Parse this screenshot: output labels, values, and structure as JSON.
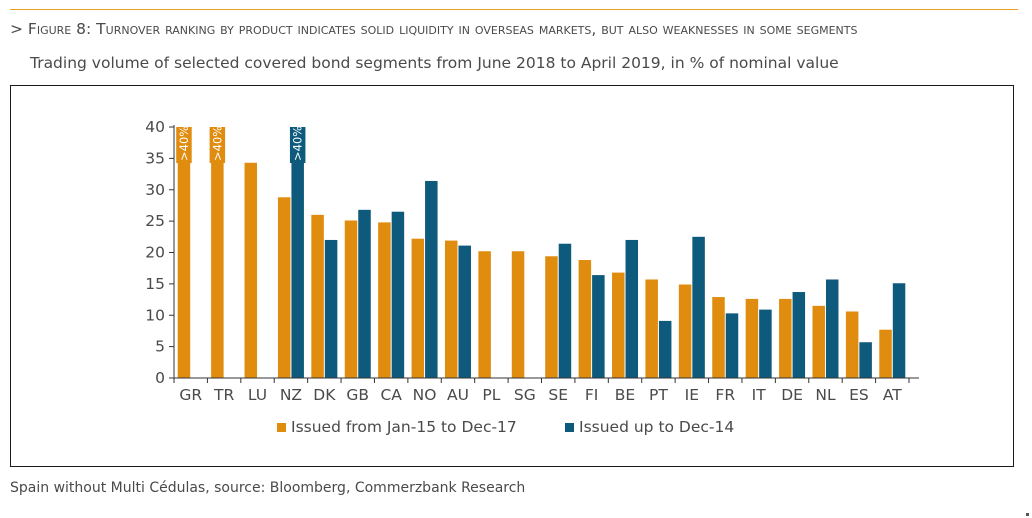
{
  "figure": {
    "title": "> Figure 8: Turnover ranking by product indicates solid liquidity in overseas markets, but also weaknesses in some segments",
    "subtitle": "Trading volume of selected covered bond segments from June 2018 to April 2019, in % of nominal value",
    "note": "Spain without Multi Cédulas, source: Bloomberg, Commerzbank Research"
  },
  "colors": {
    "orange": "#e08c0f",
    "blue": "#0e5a7c",
    "rule": "#e8a020"
  },
  "chart_data": {
    "type": "bar",
    "categories": [
      "GR",
      "TR",
      "LU",
      "NZ",
      "DK",
      "GB",
      "CA",
      "NO",
      "AU",
      "PL",
      "SG",
      "SE",
      "FI",
      "BE",
      "PT",
      "IE",
      "FR",
      "IT",
      "DE",
      "NL",
      "ES",
      "AT"
    ],
    "series": [
      {
        "name": "Issued from Jan-15 to Dec-17",
        "color": "#e08c0f",
        "values": [
          40,
          40,
          34.3,
          28.8,
          26,
          25.1,
          24.8,
          22.2,
          21.9,
          20.2,
          20.2,
          19.4,
          18.8,
          16.8,
          15.7,
          14.9,
          12.9,
          12.6,
          12.6,
          11.5,
          10.6,
          7.7
        ],
        "labels": [
          ">40%",
          ">40%",
          "",
          "",
          "",
          "",
          "",
          "",
          "",
          "",
          "",
          "",
          "",
          "",
          "",
          "",
          "",
          "",
          "",
          "",
          "",
          ""
        ]
      },
      {
        "name": "Issued up to Dec-14",
        "color": "#0e5a7c",
        "values": [
          null,
          null,
          null,
          40,
          22,
          26.8,
          26.5,
          31.4,
          21.1,
          null,
          null,
          21.4,
          16.4,
          22,
          9.1,
          22.5,
          10.3,
          10.9,
          13.7,
          15.7,
          5.7,
          15.1
        ],
        "labels": [
          "",
          "",
          "",
          ">40%",
          "",
          "",
          "",
          "",
          "",
          "",
          "",
          "",
          "",
          "",
          "",
          "",
          "",
          "",
          "",
          "",
          "",
          ""
        ]
      }
    ],
    "ylim": [
      0,
      40
    ],
    "yticks": [
      "0",
      "5",
      "10",
      "15",
      "20",
      "25",
      "30",
      "35",
      "40"
    ],
    "xlabel": "",
    "ylabel": "",
    "legend": "bottom-center",
    "grid": false
  }
}
